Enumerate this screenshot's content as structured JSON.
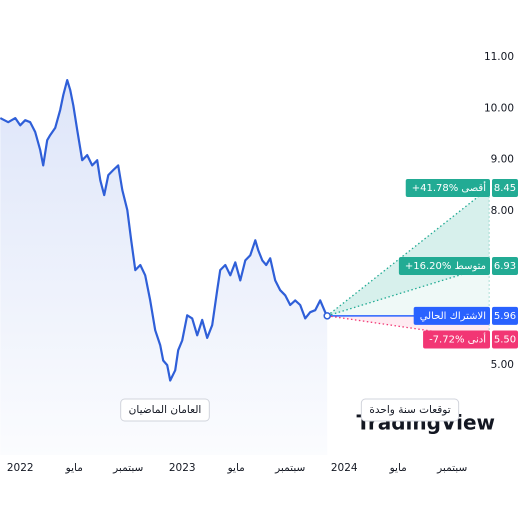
{
  "chart_data": {
    "type": "line",
    "xlim": [
      -1.5,
      34.8
    ],
    "ylim": [
      3.25,
      12.11
    ],
    "xticks": [
      {
        "value": 0,
        "label": "2022"
      },
      {
        "value": 4,
        "label": "مايو"
      },
      {
        "value": 8,
        "label": "سبتمبر"
      },
      {
        "value": 12,
        "label": "2023"
      },
      {
        "value": 16,
        "label": "مايو"
      },
      {
        "value": 20,
        "label": "سبتمبر"
      },
      {
        "value": 24,
        "label": "2024"
      },
      {
        "value": 28,
        "label": "مايو"
      },
      {
        "value": 32,
        "label": "سبتمبر"
      }
    ],
    "yticks": [
      {
        "value": 5,
        "label": "5.00"
      },
      {
        "value": 8,
        "label": "8.00"
      },
      {
        "value": 9,
        "label": "9.00"
      },
      {
        "value": 10,
        "label": "10.00"
      },
      {
        "value": 11,
        "label": "11.00"
      }
    ],
    "series": [
      {
        "color": "#2f5fd8",
        "x": [
          -1.48,
          -0.89,
          -0.37,
          0,
          0.37,
          0.74,
          1.11,
          1.48,
          1.7,
          2.0,
          2.22,
          2.59,
          2.96,
          3.19,
          3.48,
          3.7,
          3.93,
          4.22,
          4.59,
          4.96,
          5.33,
          5.7,
          5.93,
          6.22,
          6.52,
          6.89,
          7.26,
          7.56,
          7.93,
          8.22,
          8.52,
          8.89,
          9.26,
          9.63,
          10.0,
          10.37,
          10.59,
          10.89,
          11.11,
          11.48,
          11.7,
          12.0,
          12.37,
          12.74,
          13.11,
          13.48,
          13.85,
          14.22,
          14.59,
          14.81,
          15.19,
          15.56,
          15.93,
          16.3,
          16.67,
          17.04,
          17.41,
          17.63,
          17.93,
          18.22,
          18.52,
          18.89,
          19.26,
          19.63,
          20.0,
          20.37,
          20.74,
          21.11,
          21.48,
          21.85,
          22.22,
          22.59,
          22.74
        ],
        "values": [
          9.81,
          9.73,
          9.81,
          9.67,
          9.77,
          9.73,
          9.54,
          9.19,
          8.89,
          9.38,
          9.48,
          9.62,
          9.97,
          10.26,
          10.55,
          10.36,
          10.06,
          9.58,
          8.99,
          9.09,
          8.89,
          8.99,
          8.6,
          8.31,
          8.7,
          8.8,
          8.89,
          8.41,
          8.02,
          7.43,
          6.85,
          6.95,
          6.75,
          6.26,
          5.68,
          5.39,
          5.09,
          5.0,
          4.7,
          4.9,
          5.29,
          5.48,
          5.97,
          5.91,
          5.58,
          5.88,
          5.53,
          5.78,
          6.46,
          6.85,
          6.95,
          6.75,
          7.0,
          6.65,
          7.04,
          7.14,
          7.43,
          7.24,
          7.04,
          6.95,
          7.08,
          6.65,
          6.46,
          6.36,
          6.17,
          6.26,
          6.17,
          5.91,
          6.03,
          6.07,
          6.26,
          6.03,
          5.96
        ]
      }
    ],
    "current": {
      "label": "الاشتراك الحالي",
      "color": "#2962ff"
    },
    "forecast": {
      "x": 34.74,
      "targets": [
        {
          "label": "+41.78% أقصى",
          "value": 8.45,
          "color": "#22ab94"
        },
        {
          "label": "+16.20% متوسط",
          "value": 6.93,
          "color": "#22ab94"
        },
        {
          "label": "-7.72% أدنى",
          "value": 5.5,
          "value_label": "5.50",
          "color": "#f23674"
        }
      ]
    },
    "period_labels": [
      "العامان الماضيان",
      "توقعات سنة واحدة"
    ],
    "watermark": "TradingView"
  }
}
